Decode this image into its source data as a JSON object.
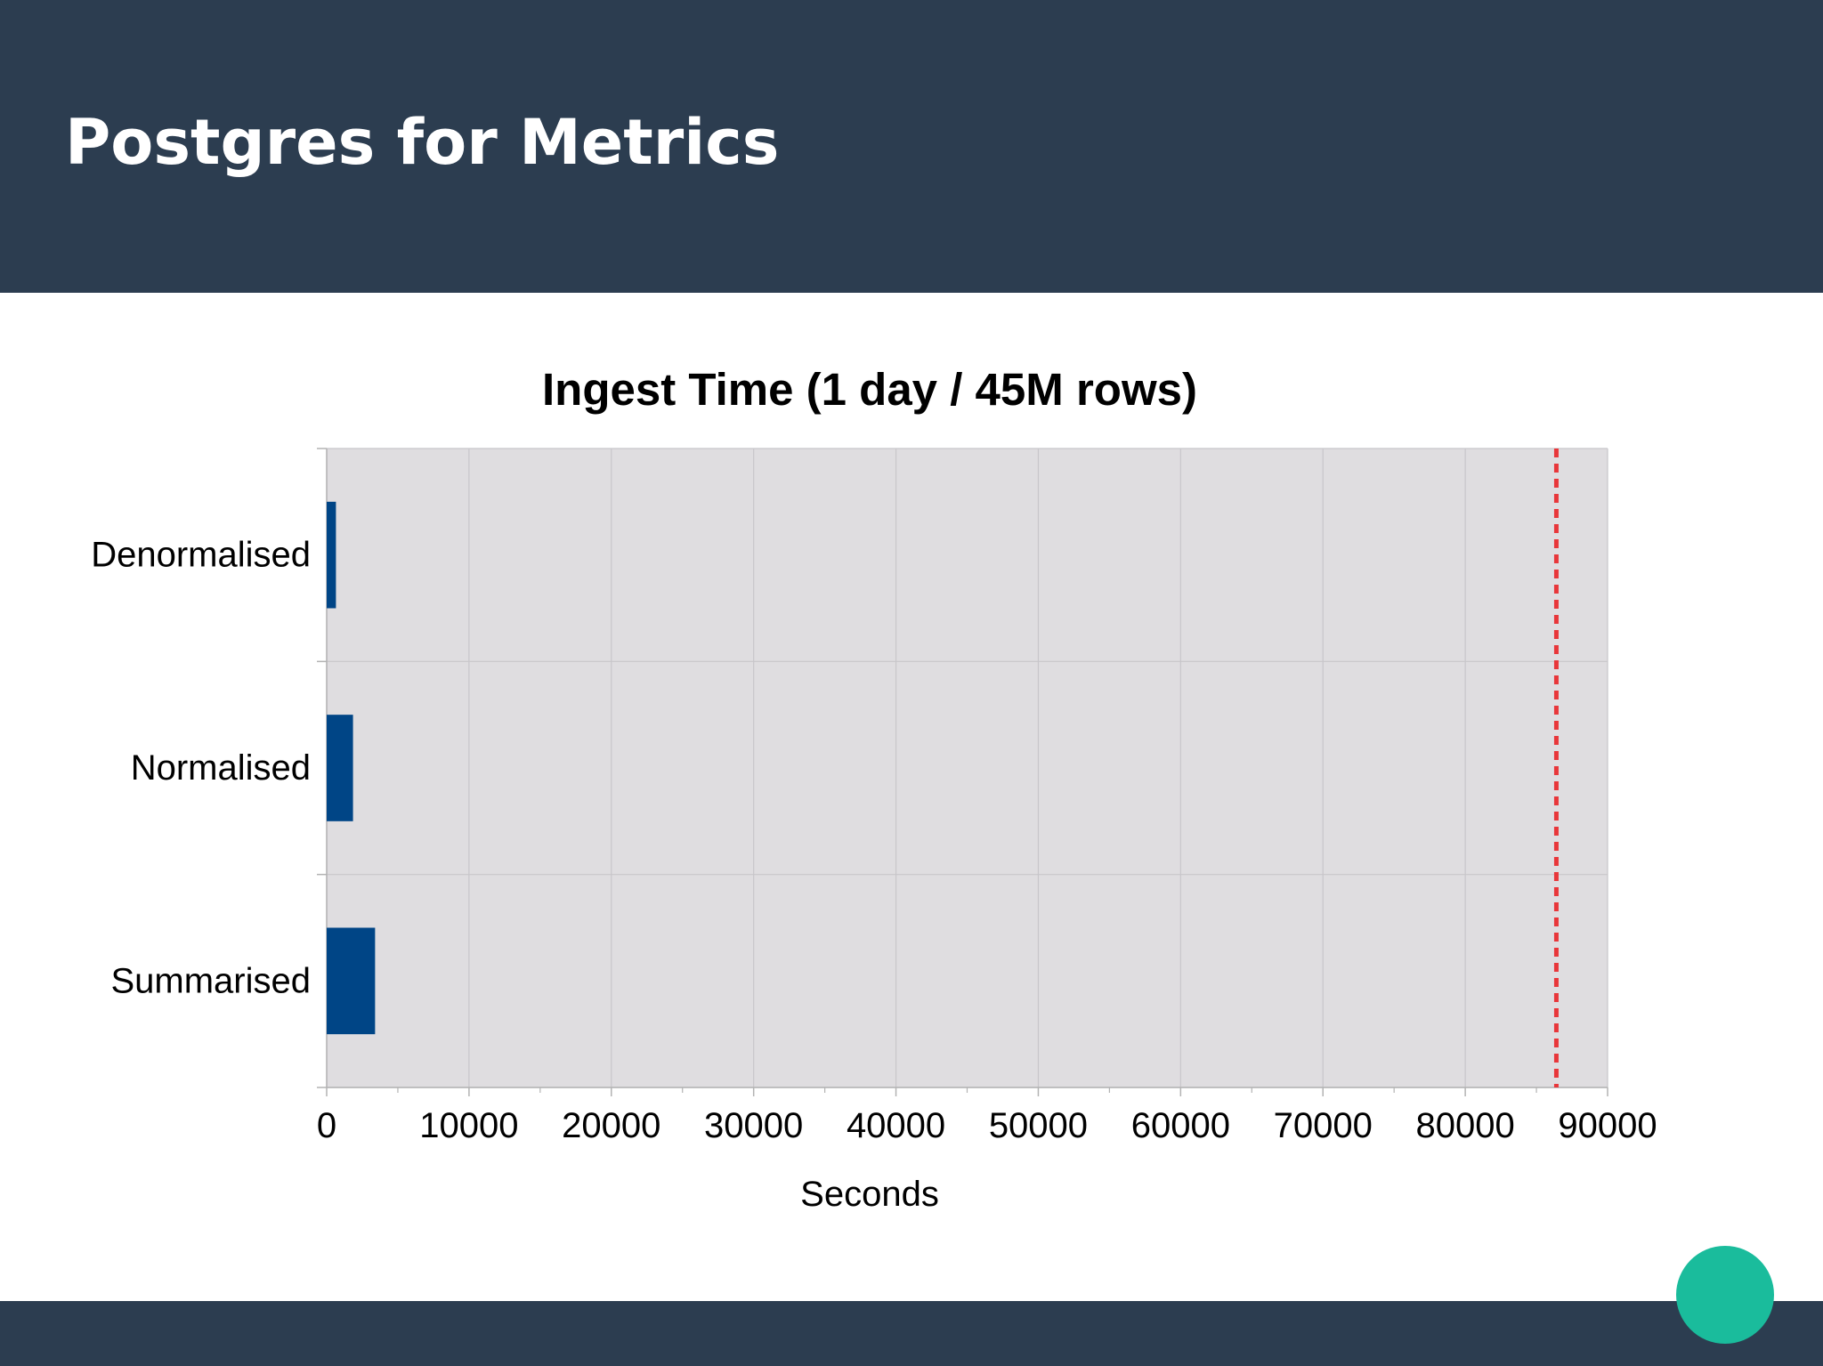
{
  "slide": {
    "title": "Postgres for Metrics"
  },
  "colors": {
    "header_bg": "#2c3d50",
    "footer_bg": "#2c3d50",
    "accent_dot": "#1abc9c",
    "plot_bg": "#dfdde0",
    "bar": "#004586",
    "reference_line": "#e8363a"
  },
  "chart_data": {
    "type": "bar",
    "orientation": "horizontal",
    "title": "Ingest Time (1 day / 45M rows)",
    "xlabel": "Seconds",
    "ylabel": "",
    "categories": [
      "Denormalised",
      "Normalised",
      "Summarised"
    ],
    "values": [
      650,
      1850,
      3400
    ],
    "xlim": [
      0,
      90000
    ],
    "xticks": [
      "0",
      "10000",
      "20000",
      "30000",
      "40000",
      "50000",
      "60000",
      "70000",
      "80000",
      "90000"
    ],
    "grid": true,
    "legend": "none",
    "reference_line": {
      "value": 86400,
      "style": "dashed"
    }
  }
}
